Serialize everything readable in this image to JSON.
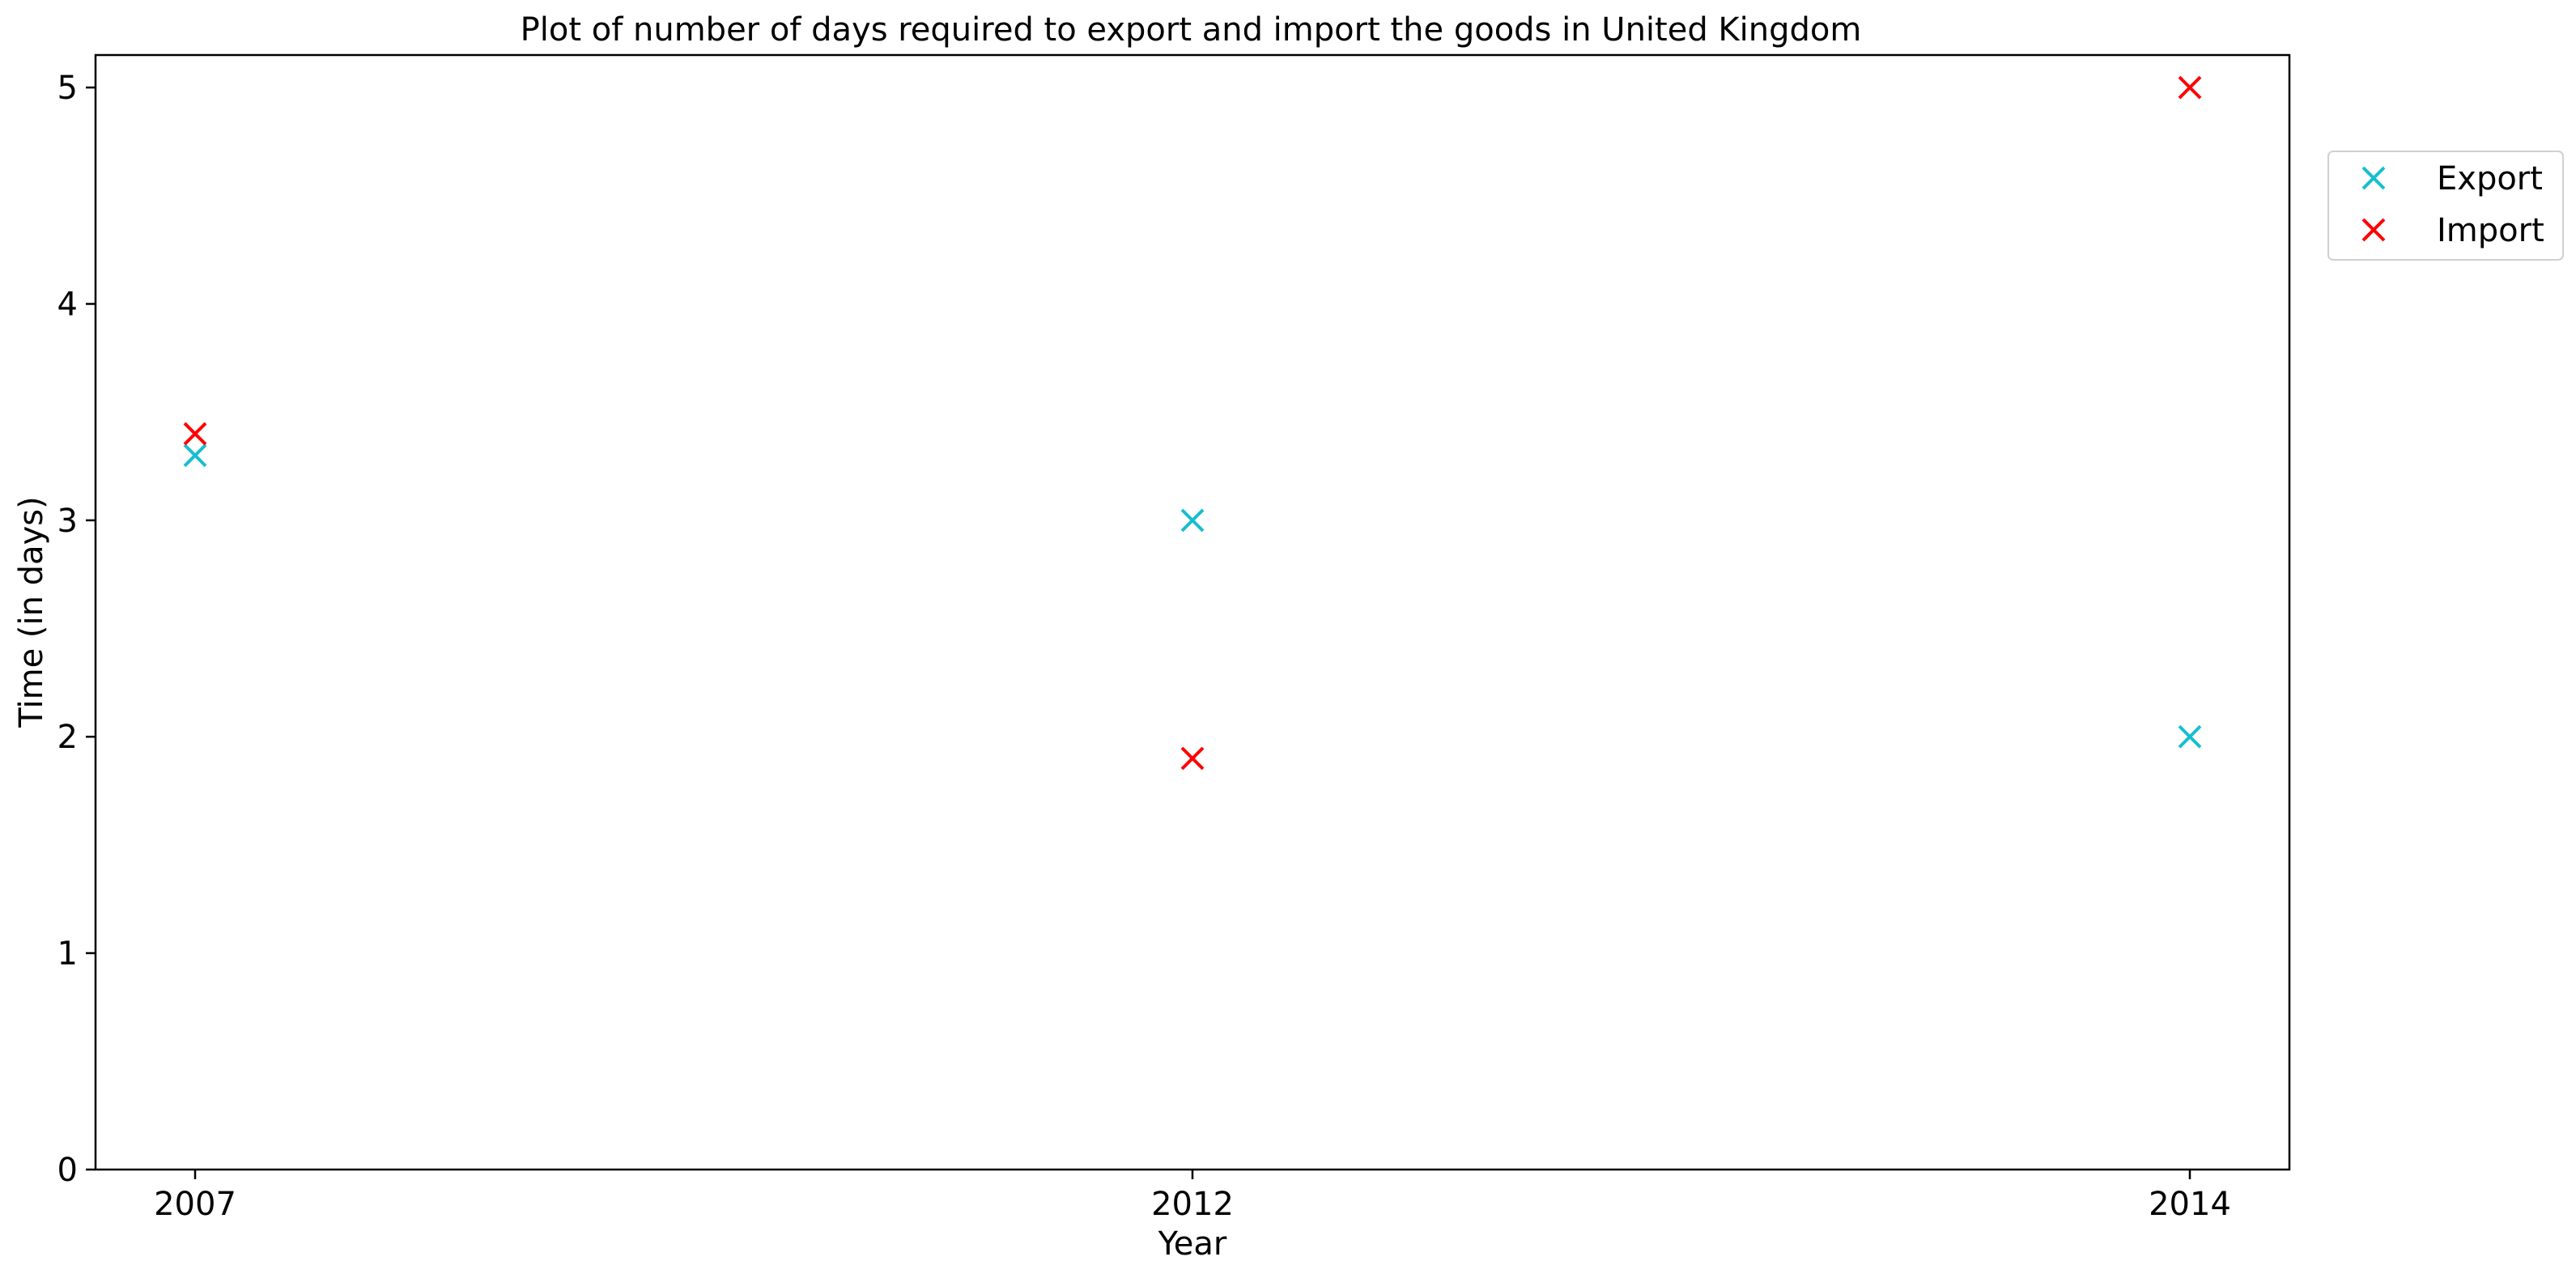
{
  "chart_data": {
    "type": "scatter",
    "title": "Plot of number of days required to export and import the goods in United Kingdom",
    "xlabel": "Year",
    "ylabel": "Time (in days)",
    "categories": [
      "2007",
      "2012",
      "2014"
    ],
    "yticks": [
      "0",
      "1",
      "2",
      "3",
      "4",
      "5"
    ],
    "ylim": [
      0,
      5.15
    ],
    "grid": false,
    "legend_position": "outside-top-right",
    "marker": "x",
    "series": [
      {
        "name": "Export",
        "color": "#17becf",
        "values": [
          3.3,
          3.0,
          2.0
        ]
      },
      {
        "name": "Import",
        "color": "#ff0000",
        "values": [
          3.4,
          1.9,
          5.0
        ]
      }
    ]
  }
}
